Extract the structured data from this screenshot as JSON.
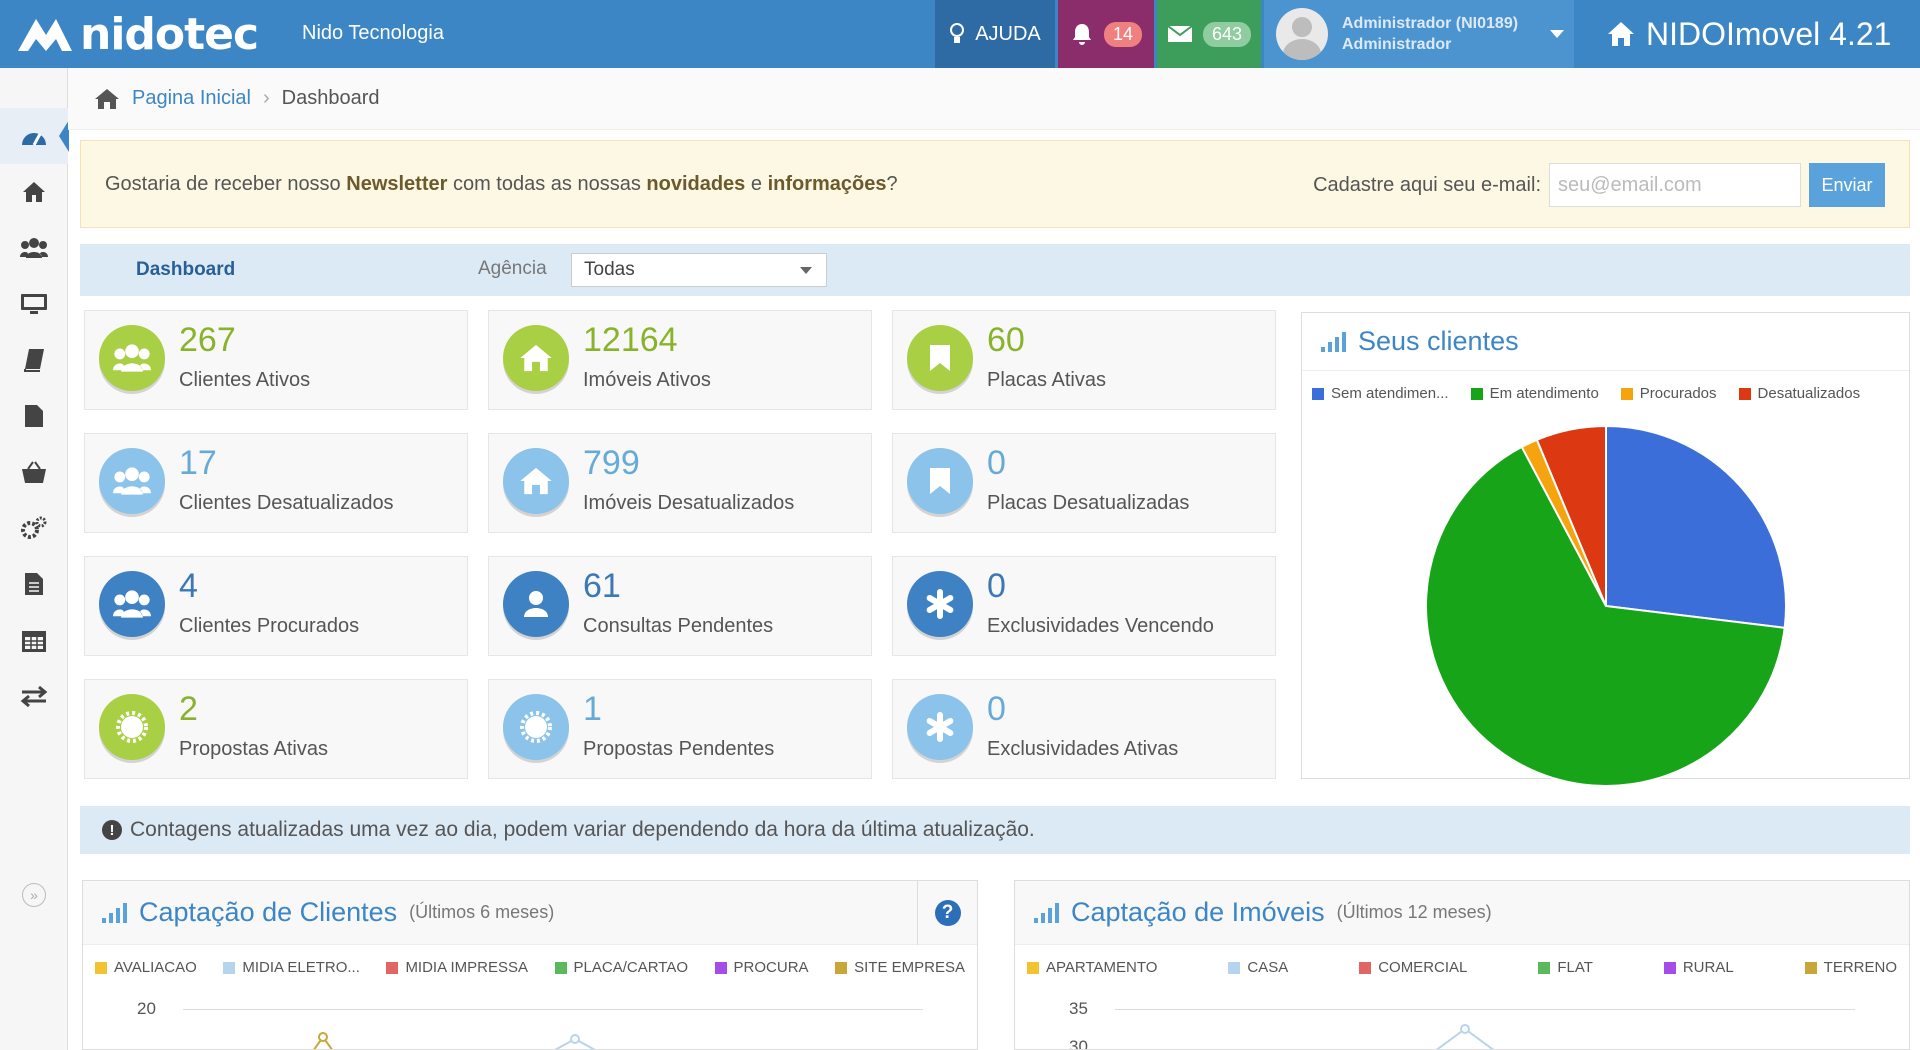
{
  "topbar": {
    "logo": "nidotec",
    "company": "Nido Tecnologia",
    "help_label": "AJUDA",
    "notifications_count": "14",
    "messages_count": "643",
    "user_name": "Administrador (NI0189)",
    "user_role": "Administrador",
    "brand": "NIDOImovel 4.21"
  },
  "sidebar": {
    "items": [
      "dashboard-icon",
      "home-icon",
      "users-icon",
      "monitor-icon",
      "book-icon",
      "file-icon",
      "basket-icon",
      "cogs-icon",
      "document-icon",
      "calendar-icon",
      "exchange-icon"
    ],
    "active": "dashboard-icon"
  },
  "breadcrumb": {
    "home": "Pagina Inicial",
    "current": "Dashboard"
  },
  "newsletter": {
    "text_1": "Gostaria de receber nosso ",
    "bold_1": "Newsletter",
    "text_2": " com todas as nossas ",
    "bold_2": "novidades",
    "text_3": " e ",
    "bold_3": "informações",
    "text_4": "?",
    "label": "Cadastre aqui seu e-mail:",
    "placeholder": "seu@email.com",
    "button": "Enviar"
  },
  "filter": {
    "title": "Dashboard",
    "label": "Agência",
    "selected": "Todas"
  },
  "stats": [
    {
      "value": "267",
      "label": "Clientes Ativos"
    },
    {
      "value": "12164",
      "label": "Imóveis Ativos"
    },
    {
      "value": "60",
      "label": "Placas Ativas"
    },
    {
      "value": "17",
      "label": "Clientes Desatualizados"
    },
    {
      "value": "799",
      "label": "Imóveis Desatualizados"
    },
    {
      "value": "0",
      "label": "Placas Desatualizadas"
    },
    {
      "value": "4",
      "label": "Clientes Procurados"
    },
    {
      "value": "61",
      "label": "Consultas Pendentes"
    },
    {
      "value": "0",
      "label": "Exclusividades Vencendo"
    },
    {
      "value": "2",
      "label": "Propostas Ativas"
    },
    {
      "value": "1",
      "label": "Propostas Pendentes"
    },
    {
      "value": "0",
      "label": "Exclusividades Ativas"
    }
  ],
  "colors": {
    "blue": "#3b6ed8",
    "green": "#18a418",
    "orange": "#f5a40f",
    "red": "#dc3912"
  },
  "chart_data": [
    {
      "type": "pie",
      "title": "Seus clientes",
      "series": [
        {
          "name": "Sem atendimen...",
          "value": 73
        },
        {
          "name": "Em atendimento",
          "value": 177
        },
        {
          "name": "Procurados",
          "value": 4
        },
        {
          "name": "Desatualizados",
          "value": 17
        }
      ]
    }
  ],
  "panels": {
    "clientes_title": "Captação de Clientes",
    "clientes_sub": "(Últimos 6 meses)",
    "clientes_legend": [
      "AVALIACAO",
      "MIDIA ELETRO...",
      "MIDIA IMPRESSA",
      "PLACA/CARTAO",
      "PROCURA",
      "SITE EMPRESA"
    ],
    "clientes_y_top": "20",
    "imoveis_title": "Captação de Imóveis",
    "imoveis_sub": "(Últimos 12 meses)",
    "imoveis_legend": [
      "APARTAMENTO",
      "CASA",
      "COMERCIAL",
      "FLAT",
      "RURAL",
      "TERRENO"
    ],
    "imoveis_y_top": "35",
    "imoveis_y_second": "30"
  },
  "info": "Contagens atualizadas uma vez ao dia, podem variar dependendo da hora da última atualização."
}
